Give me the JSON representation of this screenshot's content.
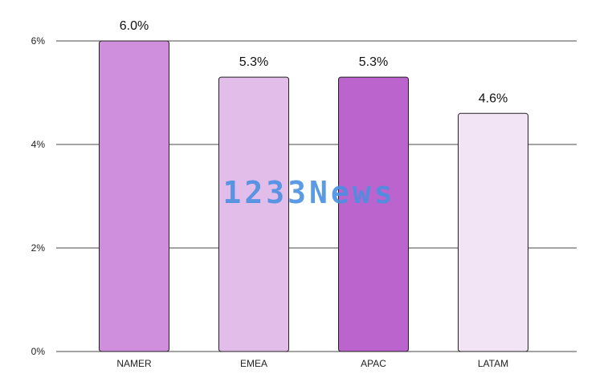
{
  "chart_data": {
    "type": "bar",
    "categories": [
      "NAMER",
      "EMEA",
      "APAC",
      "LATAM"
    ],
    "values": [
      6.0,
      5.3,
      5.3,
      4.6
    ],
    "data_labels": [
      "6.0%",
      "5.3%",
      "5.3%",
      "4.6%"
    ],
    "colors": [
      "#cf8fdc",
      "#e2bde9",
      "#bb64cd",
      "#f2e3f5"
    ],
    "ylim": [
      0,
      6
    ],
    "yticks": [
      0,
      2,
      4,
      6
    ],
    "ytick_labels": [
      "0%",
      "2%",
      "4%",
      "6%"
    ],
    "title": "",
    "xlabel": "",
    "ylabel": "",
    "grid": true,
    "legend": "none"
  },
  "watermark": {
    "text": "1233News",
    "color": "#4a90e2"
  }
}
